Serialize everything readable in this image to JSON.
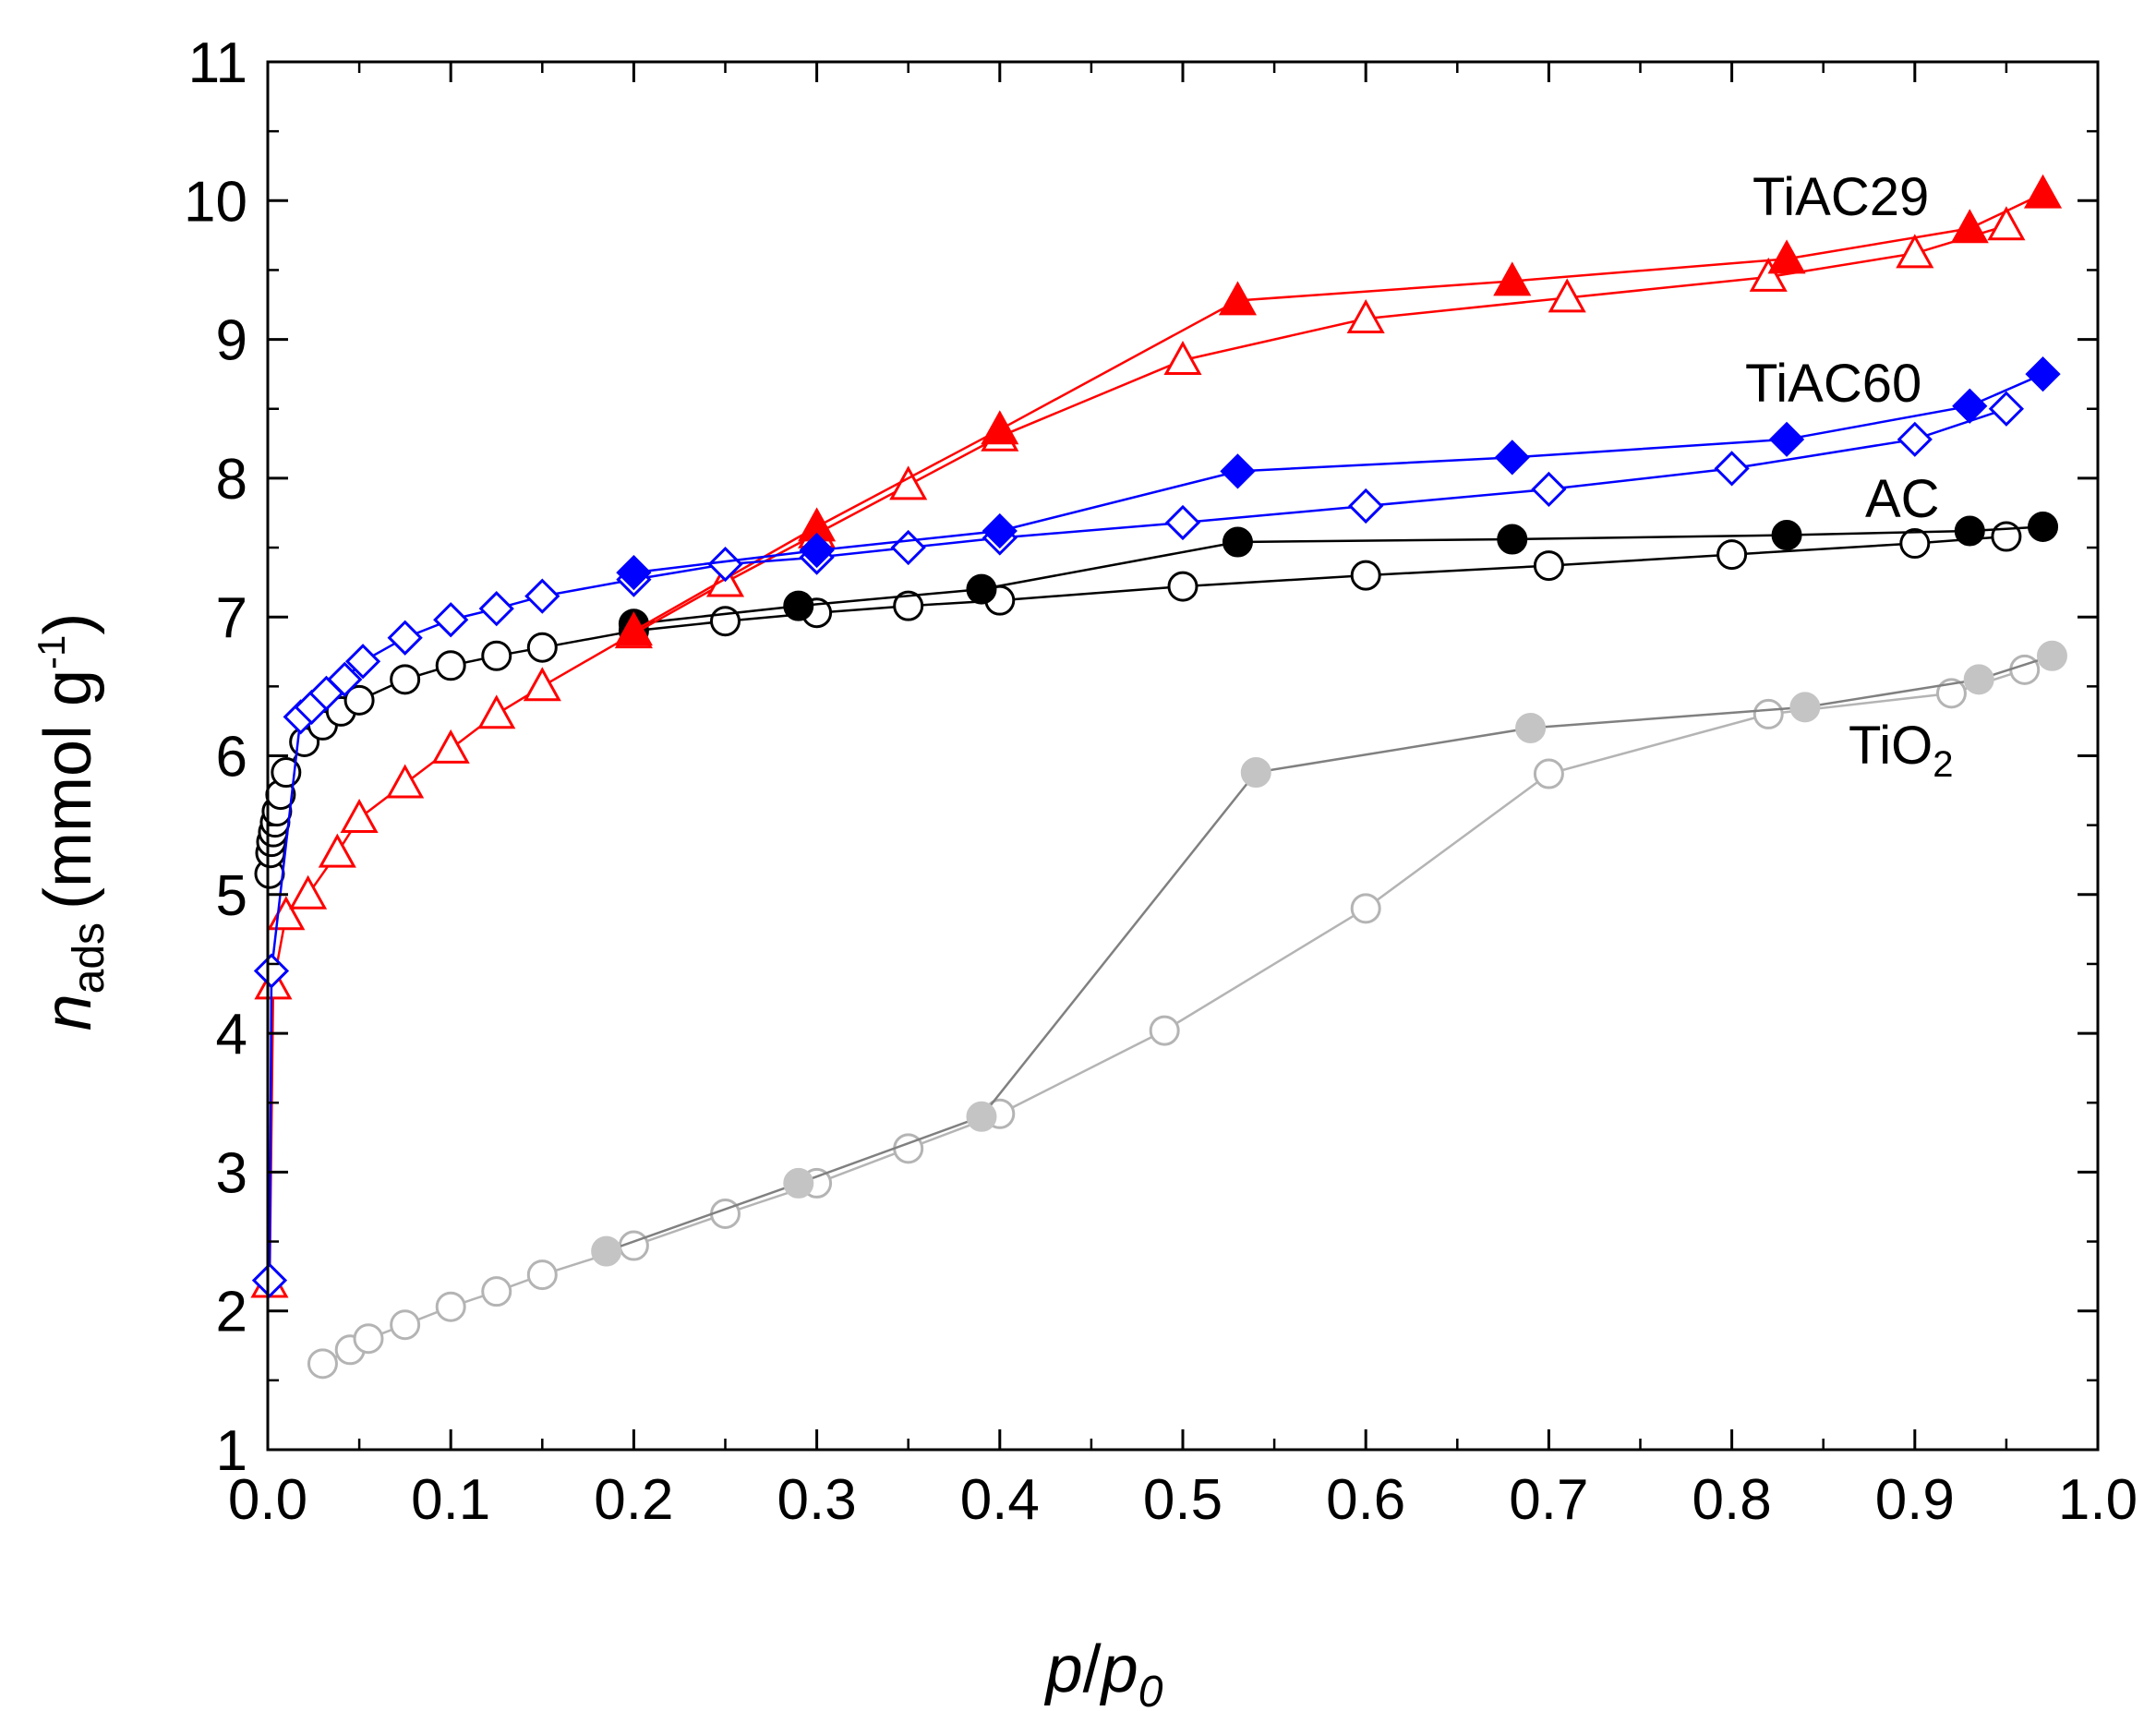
{
  "chart_data": {
    "type": "scatter",
    "title": "",
    "xlabel": {
      "italic_var": "p",
      "slash": "/",
      "italic_var2": "p",
      "subscript": "0"
    },
    "ylabel": {
      "var": "n",
      "subscript": "ads",
      "unit": "(mmol g",
      "superscript": "-1",
      "close": ")"
    },
    "xlim": [
      0.0,
      1.0
    ],
    "ylim": [
      1,
      11
    ],
    "x_ticks": [
      "0.0",
      "0.1",
      "0.2",
      "0.3",
      "0.4",
      "0.5",
      "0.6",
      "0.7",
      "0.8",
      "0.9",
      "1.0"
    ],
    "y_ticks": [
      "1",
      "2",
      "3",
      "4",
      "5",
      "6",
      "7",
      "8",
      "9",
      "10",
      "11"
    ],
    "grid": false,
    "series": [
      {
        "name": "TiAC29 adsorption",
        "label": "TiAC29",
        "color": "#ff0000",
        "marker": "triangle",
        "filled": false,
        "x": [
          0.001,
          0.003,
          0.01,
          0.022,
          0.038,
          0.05,
          0.075,
          0.1,
          0.125,
          0.15,
          0.2,
          0.25,
          0.3,
          0.35,
          0.4,
          0.5,
          0.6,
          0.71,
          0.82,
          0.9,
          0.95
        ],
        "y": [
          2.2,
          4.35,
          4.85,
          5.0,
          5.3,
          5.55,
          5.8,
          6.05,
          6.3,
          6.5,
          6.88,
          7.25,
          7.6,
          7.95,
          8.3,
          8.85,
          9.15,
          9.3,
          9.45,
          9.62,
          9.82
        ]
      },
      {
        "name": "TiAC29 desorption",
        "label": "",
        "color": "#ff0000",
        "marker": "triangle",
        "filled": true,
        "x": [
          0.2,
          0.3,
          0.4,
          0.53,
          0.68,
          0.83,
          0.93,
          0.97
        ],
        "y": [
          6.9,
          7.65,
          8.35,
          9.28,
          9.42,
          9.58,
          9.8,
          10.05
        ]
      },
      {
        "name": "TiAC60 adsorption",
        "label": "TiAC60",
        "color": "#0000ff",
        "marker": "diamond",
        "filled": false,
        "x": [
          0.001,
          0.002,
          0.018,
          0.024,
          0.032,
          0.042,
          0.052,
          0.075,
          0.1,
          0.125,
          0.15,
          0.2,
          0.25,
          0.3,
          0.35,
          0.4,
          0.5,
          0.6,
          0.7,
          0.8,
          0.9,
          0.95
        ],
        "y": [
          2.22,
          4.45,
          6.28,
          6.35,
          6.45,
          6.55,
          6.68,
          6.85,
          6.98,
          7.06,
          7.15,
          7.27,
          7.38,
          7.43,
          7.5,
          7.57,
          7.68,
          7.8,
          7.92,
          8.07,
          8.28,
          8.5
        ]
      },
      {
        "name": "TiAC60 desorption",
        "label": "",
        "color": "#0000ff",
        "marker": "diamond",
        "filled": true,
        "x": [
          0.2,
          0.3,
          0.4,
          0.53,
          0.68,
          0.83,
          0.93,
          0.97
        ],
        "y": [
          7.32,
          7.48,
          7.62,
          8.05,
          8.15,
          8.28,
          8.52,
          8.75
        ]
      },
      {
        "name": "AC adsorption",
        "label": "AC",
        "color": "#000000",
        "marker": "circle",
        "filled": false,
        "x": [
          0.001,
          0.0015,
          0.002,
          0.003,
          0.004,
          0.005,
          0.007,
          0.01,
          0.02,
          0.03,
          0.04,
          0.05,
          0.075,
          0.1,
          0.125,
          0.15,
          0.2,
          0.25,
          0.3,
          0.35,
          0.4,
          0.5,
          0.6,
          0.7,
          0.8,
          0.9,
          0.95
        ],
        "y": [
          5.15,
          5.3,
          5.38,
          5.45,
          5.52,
          5.6,
          5.72,
          5.88,
          6.1,
          6.22,
          6.32,
          6.4,
          6.55,
          6.65,
          6.72,
          6.78,
          6.9,
          6.97,
          7.03,
          7.08,
          7.12,
          7.22,
          7.3,
          7.37,
          7.45,
          7.53,
          7.58
        ]
      },
      {
        "name": "AC desorption",
        "label": "",
        "color": "#000000",
        "marker": "circle",
        "filled": true,
        "x": [
          0.2,
          0.29,
          0.39,
          0.53,
          0.68,
          0.83,
          0.93,
          0.97
        ],
        "y": [
          6.95,
          7.08,
          7.2,
          7.54,
          7.56,
          7.59,
          7.62,
          7.65
        ]
      },
      {
        "name": "TiO2 adsorption",
        "label": "TiO2",
        "color": "#b4b4b4",
        "marker": "circle",
        "filled": false,
        "x": [
          0.03,
          0.045,
          0.055,
          0.075,
          0.1,
          0.125,
          0.15,
          0.2,
          0.25,
          0.3,
          0.35,
          0.4,
          0.49,
          0.6,
          0.7,
          0.82,
          0.92,
          0.96
        ],
        "y": [
          1.62,
          1.72,
          1.8,
          1.9,
          2.03,
          2.14,
          2.26,
          2.47,
          2.7,
          2.92,
          3.17,
          3.42,
          4.02,
          4.9,
          5.87,
          6.3,
          6.45,
          6.62
        ]
      },
      {
        "name": "TiO2 desorption",
        "label": "",
        "color": "#808080",
        "marker": "circle",
        "filled": true,
        "fill_color": "#c4c4c4",
        "x": [
          0.185,
          0.29,
          0.39,
          0.54,
          0.69,
          0.84,
          0.935,
          0.975
        ],
        "y": [
          2.43,
          2.92,
          3.4,
          5.88,
          6.2,
          6.35,
          6.55,
          6.72
        ]
      }
    ],
    "annotations": [
      {
        "text": "TiAC29",
        "near_series": "TiAC29 desorption"
      },
      {
        "text": "TiAC60",
        "near_series": "TiAC60 desorption"
      },
      {
        "text": "AC",
        "near_series": "AC desorption"
      },
      {
        "text": "TiO",
        "subscript": "2",
        "near_series": "TiO2 adsorption"
      }
    ]
  }
}
